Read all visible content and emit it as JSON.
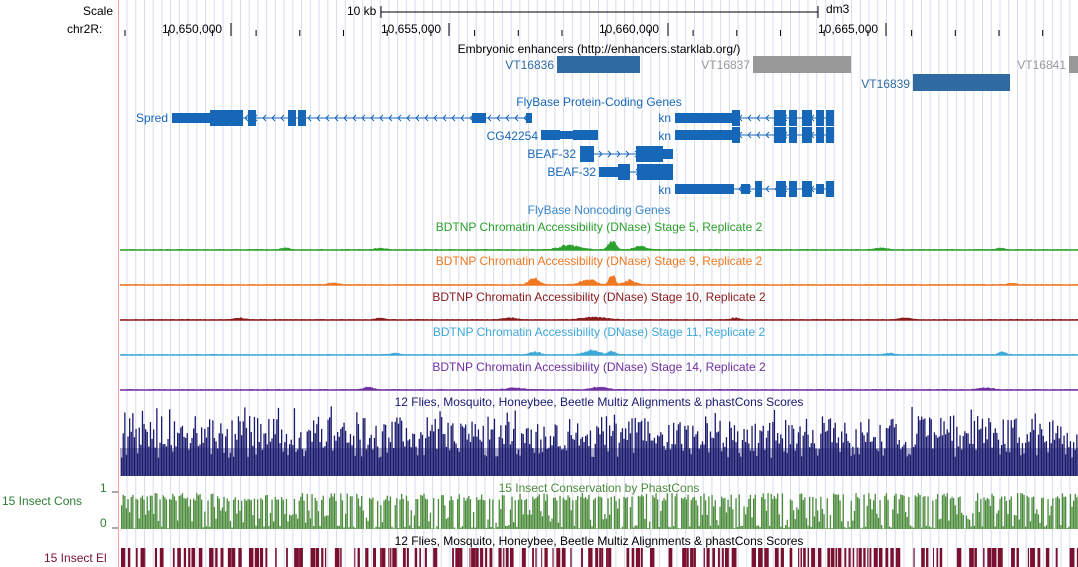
{
  "ruler": {
    "scale_label": "Scale",
    "chrom_label": "chr2R:",
    "scale_text": "10 kb",
    "assembly": "dm3",
    "ticks": [
      "10,650,000",
      "10,655,000",
      "10,660,000",
      "10,665,000"
    ]
  },
  "enhancers": {
    "title": "Embryonic enhancers (http://enhancers.starklab.org/)",
    "items": [
      "VT16836",
      "VT16837",
      "VT16839",
      "VT16841"
    ]
  },
  "genes": {
    "title": "FlyBase Protein-Coding Genes",
    "names": [
      "Spred",
      "CG42254",
      "BEAF-32",
      "BEAF-32",
      "kn",
      "kn",
      "kn"
    ]
  },
  "noncoding": {
    "title": "FlyBase Noncoding Genes"
  },
  "dnase": [
    {
      "title": "BDTNP Chromatin Accessibility (DNase) Stage 5, Replicate 2",
      "color": "#2ca02c"
    },
    {
      "title": "BDTNP Chromatin Accessibility (DNase) Stage 9, Replicate 2",
      "color": "#f07820"
    },
    {
      "title": "BDTNP Chromatin Accessibility (DNase) Stage 10, Replicate 2",
      "color": "#8b1a1a"
    },
    {
      "title": "BDTNP Chromatin Accessibility (DNase) Stage 11, Replicate 2",
      "color": "#3ea8d8"
    },
    {
      "title": "BDTNP Chromatin Accessibility (DNase) Stage 14, Replicate 2",
      "color": "#7030a0"
    }
  ],
  "multiz": {
    "title": "12 Flies, Mosquito, Honeybee, Beetle Multiz Alignments & phastCons Scores",
    "color": "#1a1a6e"
  },
  "cons": {
    "title": "15 Insect Conservation by PhastCons",
    "side_label": "15 Insect Cons",
    "max_label": "1",
    "min_label": "0",
    "color": "#4a8c3a"
  },
  "elements": {
    "title": "12 Flies, Mosquito, Honeybee, Beetle Multiz Alignments & phastCons Scores",
    "side_label": "15 Insect El",
    "color": "#7a1030"
  },
  "colors": {
    "gene": "#1767b8",
    "enhancer_dark": "#2f6aa0",
    "enhancer_grey": "#999999"
  }
}
